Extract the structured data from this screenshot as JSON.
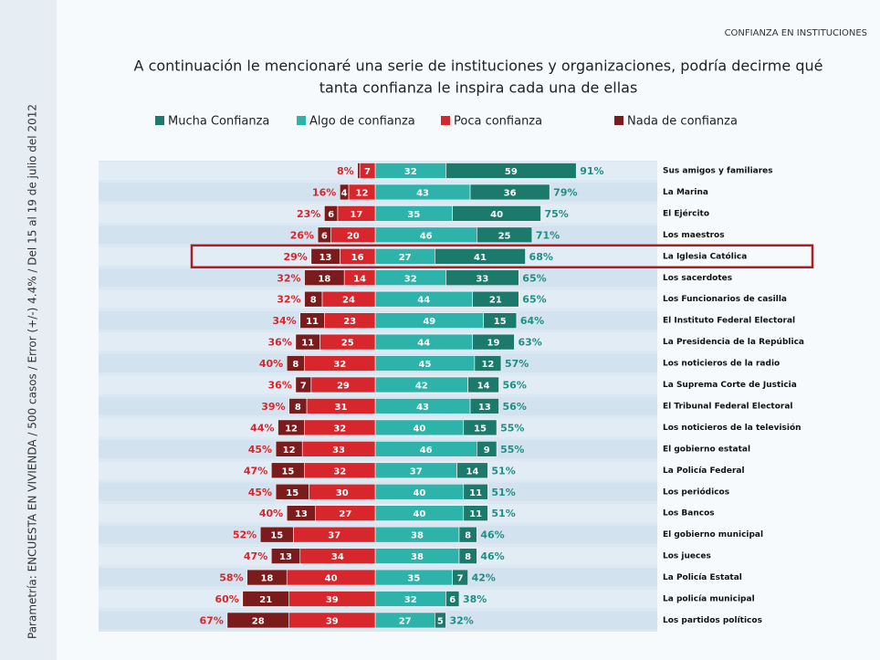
{
  "chart_data": {
    "type": "diverging-bar",
    "title": "CONFIANZA EN INSTITUCIONES",
    "subtitle": [
      "A continuación le mencionaré una serie de instituciones y organizaciones, podría decirme qué",
      "tanta confianza le inspira cada una de ellas"
    ],
    "source": "Parametría: ENCUESTA EN VIVIENDA / 500 casos / Error (+/-) 4.4% / Del 15 al 19 de julio del 2012",
    "highlight": 4,
    "categories": [
      "Sus amigos y familiares",
      "La Marina",
      "El Ejército",
      "Los maestros",
      "La Iglesia Católica",
      "Los sacerdotes",
      "Los Funcionarios de casilla",
      "El Instituto Federal Electoral",
      "La Presidencia de la República",
      "Los noticieros de la radio",
      "La Suprema Corte de Justicia",
      "El Tribunal Federal Electoral",
      "Los noticieros de la televisión",
      "El gobierno estatal",
      "La Policía Federal",
      "Los periódicos",
      "Los Bancos",
      "El gobierno municipal",
      "Los jueces",
      "La Policía Estatal",
      "La policía municipal",
      "Los partidos políticos"
    ],
    "series": [
      {
        "name": "Mucha Confianza",
        "color": "#1b7a6c",
        "side": "positive",
        "values": [
          59,
          36,
          40,
          25,
          41,
          33,
          21,
          15,
          19,
          12,
          14,
          13,
          15,
          9,
          14,
          11,
          11,
          8,
          8,
          7,
          6,
          5
        ]
      },
      {
        "name": "Algo de confianza",
        "color": "#2db3aa",
        "side": "positive",
        "values": [
          32,
          43,
          35,
          46,
          27,
          32,
          44,
          49,
          44,
          45,
          42,
          43,
          40,
          46,
          37,
          40,
          40,
          38,
          38,
          35,
          32,
          27
        ]
      },
      {
        "name": "Poca confianza",
        "color": "#d8262d",
        "side": "negative",
        "values": [
          7,
          12,
          17,
          20,
          16,
          14,
          24,
          23,
          25,
          32,
          29,
          31,
          32,
          33,
          32,
          30,
          27,
          37,
          34,
          40,
          39,
          39
        ]
      },
      {
        "name": "Nada de confianza",
        "color": "#7b1b1c",
        "side": "negative",
        "values": [
          1,
          4,
          6,
          6,
          13,
          18,
          8,
          11,
          11,
          8,
          7,
          8,
          12,
          12,
          15,
          15,
          13,
          15,
          13,
          18,
          21,
          28
        ],
        "value_labels": [
          null,
          "4",
          "6",
          "6",
          "13",
          "18",
          "8",
          "11",
          "11",
          "8",
          "7",
          "8",
          "12",
          "12",
          "15",
          "15",
          "13",
          "15",
          "13",
          "18",
          "21",
          "28"
        ]
      }
    ],
    "negative_totals": {
      "color": "#d8262d",
      "values": [
        8,
        16,
        23,
        26,
        29,
        32,
        32,
        34,
        36,
        40,
        36,
        39,
        44,
        45,
        47,
        45,
        40,
        52,
        47,
        58,
        60,
        67
      ],
      "value_labels": [
        "8%",
        "16%",
        "23%",
        "26%",
        "29%",
        "32%",
        "32%",
        "34%",
        "36%",
        "40%",
        "36%",
        "39%",
        "44%",
        "45%",
        "47%",
        "45%",
        "40%",
        "52%",
        "47%",
        "58%",
        "60%",
        "67%"
      ]
    },
    "positive_totals": {
      "color": "#1f8f84",
      "values": [
        91,
        79,
        75,
        71,
        68,
        65,
        65,
        64,
        63,
        57,
        56,
        56,
        55,
        55,
        51,
        51,
        51,
        46,
        46,
        42,
        38,
        32
      ],
      "value_labels": [
        "91%",
        "79%",
        "75%",
        "71%",
        "68%",
        "65%",
        "65%",
        "64%",
        "63%",
        "57%",
        "56%",
        "56%",
        "55%",
        "55%",
        "51%",
        "51%",
        "51%",
        "46%",
        "46%",
        "42%",
        "38%",
        "32%"
      ]
    }
  }
}
